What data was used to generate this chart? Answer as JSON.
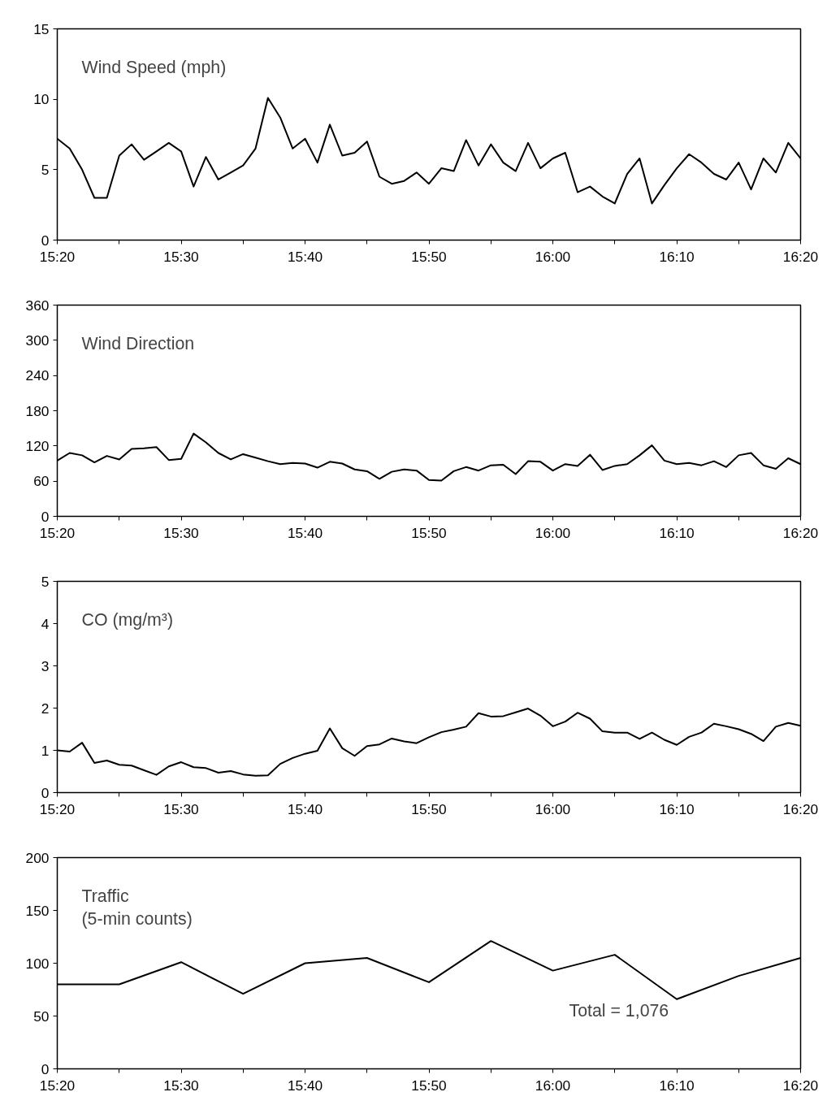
{
  "chart_data": [
    {
      "type": "line",
      "title": "Wind Speed (mph)",
      "x": [
        15.3333,
        15.35,
        15.3667,
        15.3833,
        15.4,
        15.4167,
        15.4333,
        15.45,
        15.4667,
        15.4833,
        15.5,
        15.5167,
        15.5333,
        15.55,
        15.5667,
        15.5833,
        15.6,
        15.6167,
        15.6333,
        15.65,
        15.6667,
        15.6833,
        15.7,
        15.7167,
        15.7333,
        15.75,
        15.7667,
        15.7833,
        15.8,
        15.8167,
        15.8333,
        15.85,
        15.8667,
        15.8833,
        15.9,
        15.9167,
        15.9333,
        15.95,
        15.9667,
        15.9833,
        16.0,
        16.0167,
        16.0333,
        16.05,
        16.0667,
        16.0833,
        16.1,
        16.1167,
        16.1333,
        16.15,
        16.1667,
        16.1833,
        16.2,
        16.2167,
        16.2333,
        16.25,
        16.2667,
        16.2833,
        16.3,
        16.3167,
        16.3333
      ],
      "series": [
        {
          "color": "#000000",
          "values": [
            7.2,
            6.5,
            5.0,
            3.0,
            3.0,
            6.0,
            6.8,
            5.7,
            6.3,
            6.9,
            6.3,
            3.8,
            5.9,
            4.3,
            4.8,
            5.3,
            6.5,
            10.1,
            8.7,
            6.5,
            7.2,
            5.5,
            8.2,
            6.0,
            6.2,
            7.0,
            4.5,
            4.0,
            4.2,
            4.8,
            4.0,
            5.1,
            4.9,
            7.1,
            5.3,
            6.8,
            5.5,
            4.9,
            6.9,
            5.1,
            5.8,
            6.2,
            3.4,
            3.8,
            3.1,
            2.6,
            4.7,
            5.8,
            2.6,
            3.9,
            5.1,
            6.1,
            5.5,
            4.7,
            4.3,
            5.5,
            3.6,
            5.8,
            4.8,
            6.9,
            5.8
          ]
        }
      ],
      "xlim": [
        15.3333,
        16.3333
      ],
      "ylim": [
        0,
        15
      ],
      "yticks": [
        0,
        5,
        10,
        15
      ],
      "xticks": [
        {
          "value": 15.3333,
          "label": "15:20"
        },
        {
          "value": 15.4167,
          "label": null
        },
        {
          "value": 15.5,
          "label": "15:30"
        },
        {
          "value": 15.5833,
          "label": null
        },
        {
          "value": 15.6667,
          "label": "15:40"
        },
        {
          "value": 15.75,
          "label": null
        },
        {
          "value": 15.8333,
          "label": "15:50"
        },
        {
          "value": 15.9167,
          "label": null
        },
        {
          "value": 16.0,
          "label": "16:00"
        },
        {
          "value": 16.0833,
          "label": null
        },
        {
          "value": 16.1667,
          "label": "16:10"
        },
        {
          "value": 16.25,
          "label": null
        },
        {
          "value": 16.3333,
          "label": "16:20"
        }
      ],
      "grid": false,
      "marker": "none",
      "line_style": "solid"
    },
    {
      "type": "line",
      "title": "Wind Direction",
      "x": [
        15.3333,
        15.35,
        15.3667,
        15.3833,
        15.4,
        15.4167,
        15.4333,
        15.45,
        15.4667,
        15.4833,
        15.5,
        15.5167,
        15.5333,
        15.55,
        15.5667,
        15.5833,
        15.6,
        15.6167,
        15.6333,
        15.65,
        15.6667,
        15.6833,
        15.7,
        15.7167,
        15.7333,
        15.75,
        15.7667,
        15.7833,
        15.8,
        15.8167,
        15.8333,
        15.85,
        15.8667,
        15.8833,
        15.9,
        15.9167,
        15.9333,
        15.95,
        15.9667,
        15.9833,
        16.0,
        16.0167,
        16.0333,
        16.05,
        16.0667,
        16.0833,
        16.1,
        16.1167,
        16.1333,
        16.15,
        16.1667,
        16.1833,
        16.2,
        16.2167,
        16.2333,
        16.25,
        16.2667,
        16.2833,
        16.3,
        16.3167,
        16.3333
      ],
      "series": [
        {
          "color": "#000000",
          "values": [
            95,
            108,
            104,
            92,
            103,
            97,
            115,
            116,
            118,
            96,
            98,
            141,
            126,
            108,
            97,
            106,
            100,
            94,
            89,
            91,
            90,
            83,
            93,
            90,
            80,
            77,
            64,
            76,
            80,
            78,
            62,
            61,
            77,
            84,
            78,
            87,
            88,
            72,
            94,
            93,
            78,
            89,
            86,
            105,
            79,
            86,
            89,
            104,
            121,
            95,
            89,
            91,
            87,
            94,
            84,
            104,
            108,
            87,
            81,
            99,
            89
          ]
        }
      ],
      "xlim": [
        15.3333,
        16.3333
      ],
      "ylim": [
        0,
        360
      ],
      "yticks": [
        0,
        60,
        120,
        180,
        240,
        300,
        360
      ],
      "xticks": [
        {
          "value": 15.3333,
          "label": "15:20"
        },
        {
          "value": 15.4167,
          "label": null
        },
        {
          "value": 15.5,
          "label": "15:30"
        },
        {
          "value": 15.5833,
          "label": null
        },
        {
          "value": 15.6667,
          "label": "15:40"
        },
        {
          "value": 15.75,
          "label": null
        },
        {
          "value": 15.8333,
          "label": "15:50"
        },
        {
          "value": 15.9167,
          "label": null
        },
        {
          "value": 16.0,
          "label": "16:00"
        },
        {
          "value": 16.0833,
          "label": null
        },
        {
          "value": 16.1667,
          "label": "16:10"
        },
        {
          "value": 16.25,
          "label": null
        },
        {
          "value": 16.3333,
          "label": "16:20"
        }
      ],
      "grid": false,
      "marker": "none",
      "line_style": "solid"
    },
    {
      "type": "line",
      "title": "CO (mg/m³)",
      "x": [
        15.3333,
        15.35,
        15.3667,
        15.3833,
        15.4,
        15.4167,
        15.4333,
        15.45,
        15.4667,
        15.4833,
        15.5,
        15.5167,
        15.5333,
        15.55,
        15.5667,
        15.5833,
        15.6,
        15.6167,
        15.6333,
        15.65,
        15.6667,
        15.6833,
        15.7,
        15.7167,
        15.7333,
        15.75,
        15.7667,
        15.7833,
        15.8,
        15.8167,
        15.8333,
        15.85,
        15.8667,
        15.8833,
        15.9,
        15.9167,
        15.9333,
        15.95,
        15.9667,
        15.9833,
        16.0,
        16.0167,
        16.0333,
        16.05,
        16.0667,
        16.0833,
        16.1,
        16.1167,
        16.1333,
        16.15,
        16.1667,
        16.1833,
        16.2,
        16.2167,
        16.2333,
        16.25,
        16.2667,
        16.2833,
        16.3,
        16.3167,
        16.3333
      ],
      "series": [
        {
          "color": "#000000",
          "values": [
            1.0,
            0.97,
            1.18,
            0.7,
            0.76,
            0.66,
            0.64,
            0.53,
            0.42,
            0.62,
            0.72,
            0.6,
            0.58,
            0.47,
            0.51,
            0.43,
            0.4,
            0.41,
            0.68,
            0.82,
            0.92,
            0.99,
            1.52,
            1.05,
            0.87,
            1.1,
            1.14,
            1.28,
            1.21,
            1.17,
            1.31,
            1.43,
            1.49,
            1.56,
            1.88,
            1.8,
            1.81,
            1.9,
            1.99,
            1.82,
            1.57,
            1.68,
            1.89,
            1.75,
            1.45,
            1.42,
            1.42,
            1.27,
            1.42,
            1.25,
            1.13,
            1.32,
            1.42,
            1.63,
            1.57,
            1.5,
            1.39,
            1.22,
            1.56,
            1.65,
            1.58
          ]
        }
      ],
      "xlim": [
        15.3333,
        16.3333
      ],
      "ylim": [
        0,
        5
      ],
      "yticks": [
        0,
        1,
        2,
        3,
        4,
        5
      ],
      "xticks": [
        {
          "value": 15.3333,
          "label": "15:20"
        },
        {
          "value": 15.4167,
          "label": null
        },
        {
          "value": 15.5,
          "label": "15:30"
        },
        {
          "value": 15.5833,
          "label": null
        },
        {
          "value": 15.6667,
          "label": "15:40"
        },
        {
          "value": 15.75,
          "label": null
        },
        {
          "value": 15.8333,
          "label": "15:50"
        },
        {
          "value": 15.9167,
          "label": null
        },
        {
          "value": 16.0,
          "label": "16:00"
        },
        {
          "value": 16.0833,
          "label": null
        },
        {
          "value": 16.1667,
          "label": "16:10"
        },
        {
          "value": 16.25,
          "label": null
        },
        {
          "value": 16.3333,
          "label": "16:20"
        }
      ],
      "grid": false,
      "marker": "none",
      "line_style": "solid"
    },
    {
      "type": "line",
      "title": "Traffic\n(5-min counts)",
      "annotations": [
        "Total = 1,076"
      ],
      "x": [
        15.3333,
        15.4167,
        15.5,
        15.5833,
        15.6667,
        15.75,
        15.8333,
        15.9167,
        16.0,
        16.0833,
        16.1667,
        16.25,
        16.3333
      ],
      "series": [
        {
          "color": "#000000",
          "values": [
            80,
            80,
            101,
            71,
            100,
            105,
            82,
            121,
            93,
            108,
            66,
            88,
            105
          ]
        }
      ],
      "xlim": [
        15.3333,
        16.3333
      ],
      "ylim": [
        0,
        200
      ],
      "yticks": [
        0,
        50,
        100,
        150,
        200
      ],
      "xticks": [
        {
          "value": 15.3333,
          "label": "15:20"
        },
        {
          "value": 15.4167,
          "label": null
        },
        {
          "value": 15.5,
          "label": "15:30"
        },
        {
          "value": 15.5833,
          "label": null
        },
        {
          "value": 15.6667,
          "label": "15:40"
        },
        {
          "value": 15.75,
          "label": null
        },
        {
          "value": 15.8333,
          "label": "15:50"
        },
        {
          "value": 15.9167,
          "label": null
        },
        {
          "value": 16.0,
          "label": "16:00"
        },
        {
          "value": 16.0833,
          "label": null
        },
        {
          "value": 16.1667,
          "label": "16:10"
        },
        {
          "value": 16.25,
          "label": null
        },
        {
          "value": 16.3333,
          "label": "16:20"
        }
      ],
      "grid": false,
      "marker": "none",
      "line_style": "solid"
    }
  ]
}
